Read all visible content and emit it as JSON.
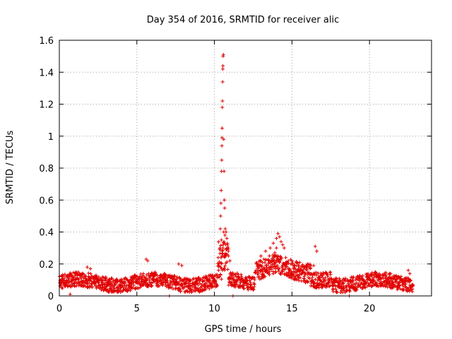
{
  "chart_data": {
    "type": "scatter",
    "title": "Day 354 of 2016, SRMTID for receiver alic",
    "xlabel": "GPS time / hours",
    "ylabel": "SRMTID / TECUs",
    "xlim": [
      0,
      24
    ],
    "ylim": [
      0,
      1.6
    ],
    "xticks": [
      0,
      5,
      10,
      15,
      20
    ],
    "yticks": [
      0,
      0.2,
      0.4,
      0.6,
      0.8,
      1,
      1.2,
      1.4,
      1.6
    ],
    "ytick_labels": [
      "0",
      "0.2",
      "0.4",
      "0.6",
      "0.8",
      "1",
      "1.2",
      "1.4",
      "1.6"
    ],
    "grid": true,
    "marker": "+",
    "color": "#e00000",
    "series": [
      {
        "name": "SRMTID",
        "description": "dense points ~0.05-0.15 TECU across 0-22.8 h, sharp spike near 10.5 h up to 1.51, bump 13-16 h up to ~0.38",
        "points": [
          [
            10.35,
            0.3
          ],
          [
            10.38,
            0.42
          ],
          [
            10.4,
            0.5
          ],
          [
            10.42,
            0.58
          ],
          [
            10.44,
            0.66
          ],
          [
            10.46,
            0.78
          ],
          [
            10.47,
            0.85
          ],
          [
            10.48,
            0.94
          ],
          [
            10.49,
            0.99
          ],
          [
            10.5,
            1.05
          ],
          [
            10.51,
            1.18
          ],
          [
            10.52,
            1.22
          ],
          [
            10.53,
            1.34
          ],
          [
            10.54,
            1.42
          ],
          [
            10.55,
            1.44
          ],
          [
            10.56,
            1.5
          ],
          [
            10.58,
            1.51
          ],
          [
            10.6,
            0.98
          ],
          [
            10.62,
            0.78
          ],
          [
            10.64,
            0.6
          ],
          [
            10.66,
            0.55
          ],
          [
            10.7,
            0.42
          ],
          [
            10.75,
            0.4
          ],
          [
            10.8,
            0.36
          ],
          [
            10.85,
            0.32
          ],
          [
            10.9,
            0.28
          ],
          [
            11.0,
            0.22
          ],
          [
            10.45,
            0.35
          ],
          [
            10.5,
            0.28
          ],
          [
            10.55,
            0.3
          ],
          [
            10.6,
            0.4
          ],
          [
            10.68,
            0.38
          ],
          [
            10.72,
            0.25
          ],
          [
            16.5,
            0.31
          ],
          [
            16.6,
            0.28
          ],
          [
            5.6,
            0.23
          ],
          [
            5.7,
            0.22
          ],
          [
            1.8,
            0.18
          ],
          [
            2.0,
            0.17
          ],
          [
            7.7,
            0.2
          ],
          [
            7.9,
            0.19
          ],
          [
            13.0,
            0.25
          ],
          [
            13.3,
            0.28
          ],
          [
            13.6,
            0.3
          ],
          [
            13.8,
            0.33
          ],
          [
            14.0,
            0.36
          ],
          [
            14.1,
            0.39
          ],
          [
            14.2,
            0.37
          ],
          [
            14.3,
            0.34
          ],
          [
            14.4,
            0.32
          ],
          [
            14.5,
            0.3
          ],
          [
            14.0,
            0.3
          ],
          [
            13.9,
            0.27
          ],
          [
            14.6,
            0.24
          ],
          [
            15.0,
            0.22
          ],
          [
            15.5,
            0.21
          ],
          [
            16.0,
            0.2
          ],
          [
            16.4,
            0.19
          ],
          [
            22.5,
            0.16
          ],
          [
            22.6,
            0.14
          ],
          [
            0.7,
            0.01
          ],
          [
            7.1,
            0.0
          ],
          [
            11.2,
            0.0
          ],
          [
            18.7,
            0.0
          ]
        ]
      }
    ]
  }
}
